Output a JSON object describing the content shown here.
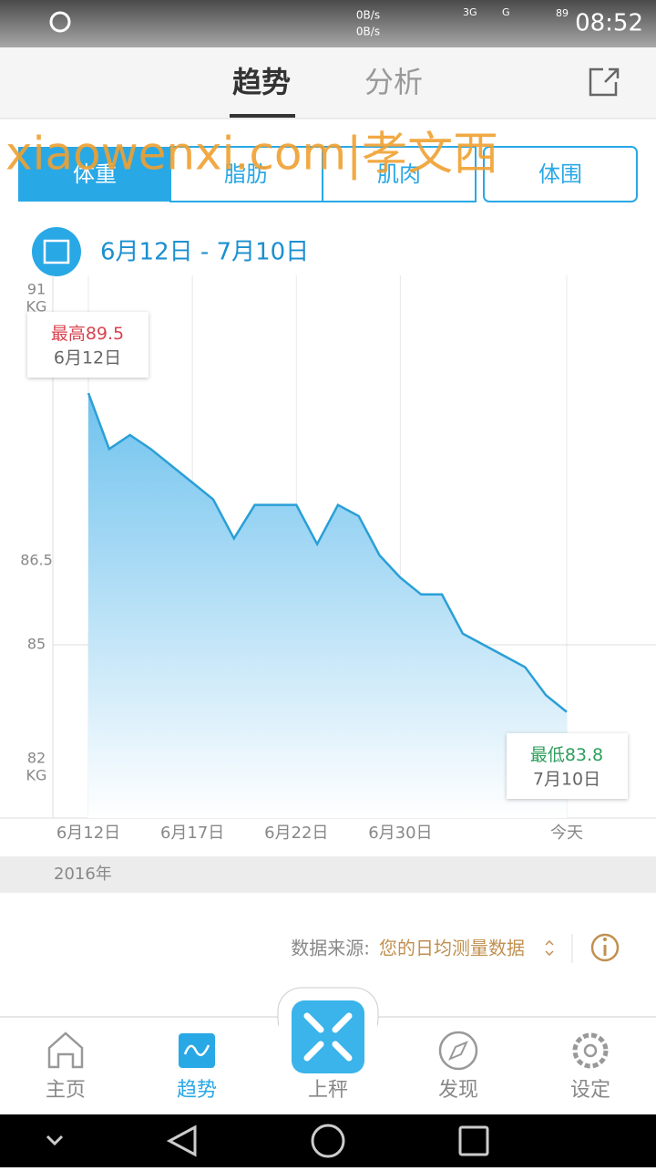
{
  "status_bar": {
    "net_up": "0B/s",
    "net_down": "0B/s",
    "net1": "3G",
    "net2": "G",
    "battery": "89",
    "time": "08:52"
  },
  "header": {
    "tabs": [
      "趋势",
      "分析"
    ]
  },
  "watermark": "xiaowenxi.com|孝文西",
  "segments": [
    "体重",
    "脂肪",
    "肌肉",
    "体围"
  ],
  "date_range": "6月12日 - 7月10日",
  "chart_data": {
    "type": "area",
    "categories": [
      "6月12日",
      null,
      null,
      null,
      null,
      "6月17日",
      null,
      null,
      null,
      null,
      "6月22日",
      null,
      null,
      null,
      null,
      "6月30日",
      null,
      null,
      null,
      null,
      null,
      null,
      null,
      "今天"
    ],
    "values": [
      89.5,
      88.5,
      88.75,
      88.5,
      88.2,
      87.9,
      87.6,
      86.9,
      87.5,
      87.5,
      87.5,
      86.8,
      87.5,
      87.3,
      86.6,
      86.2,
      85.9,
      85.9,
      85.2,
      85.0,
      84.8,
      84.6,
      84.1,
      83.8
    ],
    "color": "#2a9fd6",
    "ylim": [
      82,
      91
    ],
    "yticks": [
      82,
      85,
      86.5,
      91
    ],
    "y_unit": "KG",
    "ref_line": 85,
    "max_label": "最高",
    "min_label": "最低",
    "min_date": "7月10日",
    "year": "2016年"
  },
  "source": {
    "label": "数据来源:",
    "value": "您的日均测量数据"
  },
  "nav": [
    "主页",
    "趋势",
    "上秤",
    "发现",
    "设定"
  ]
}
